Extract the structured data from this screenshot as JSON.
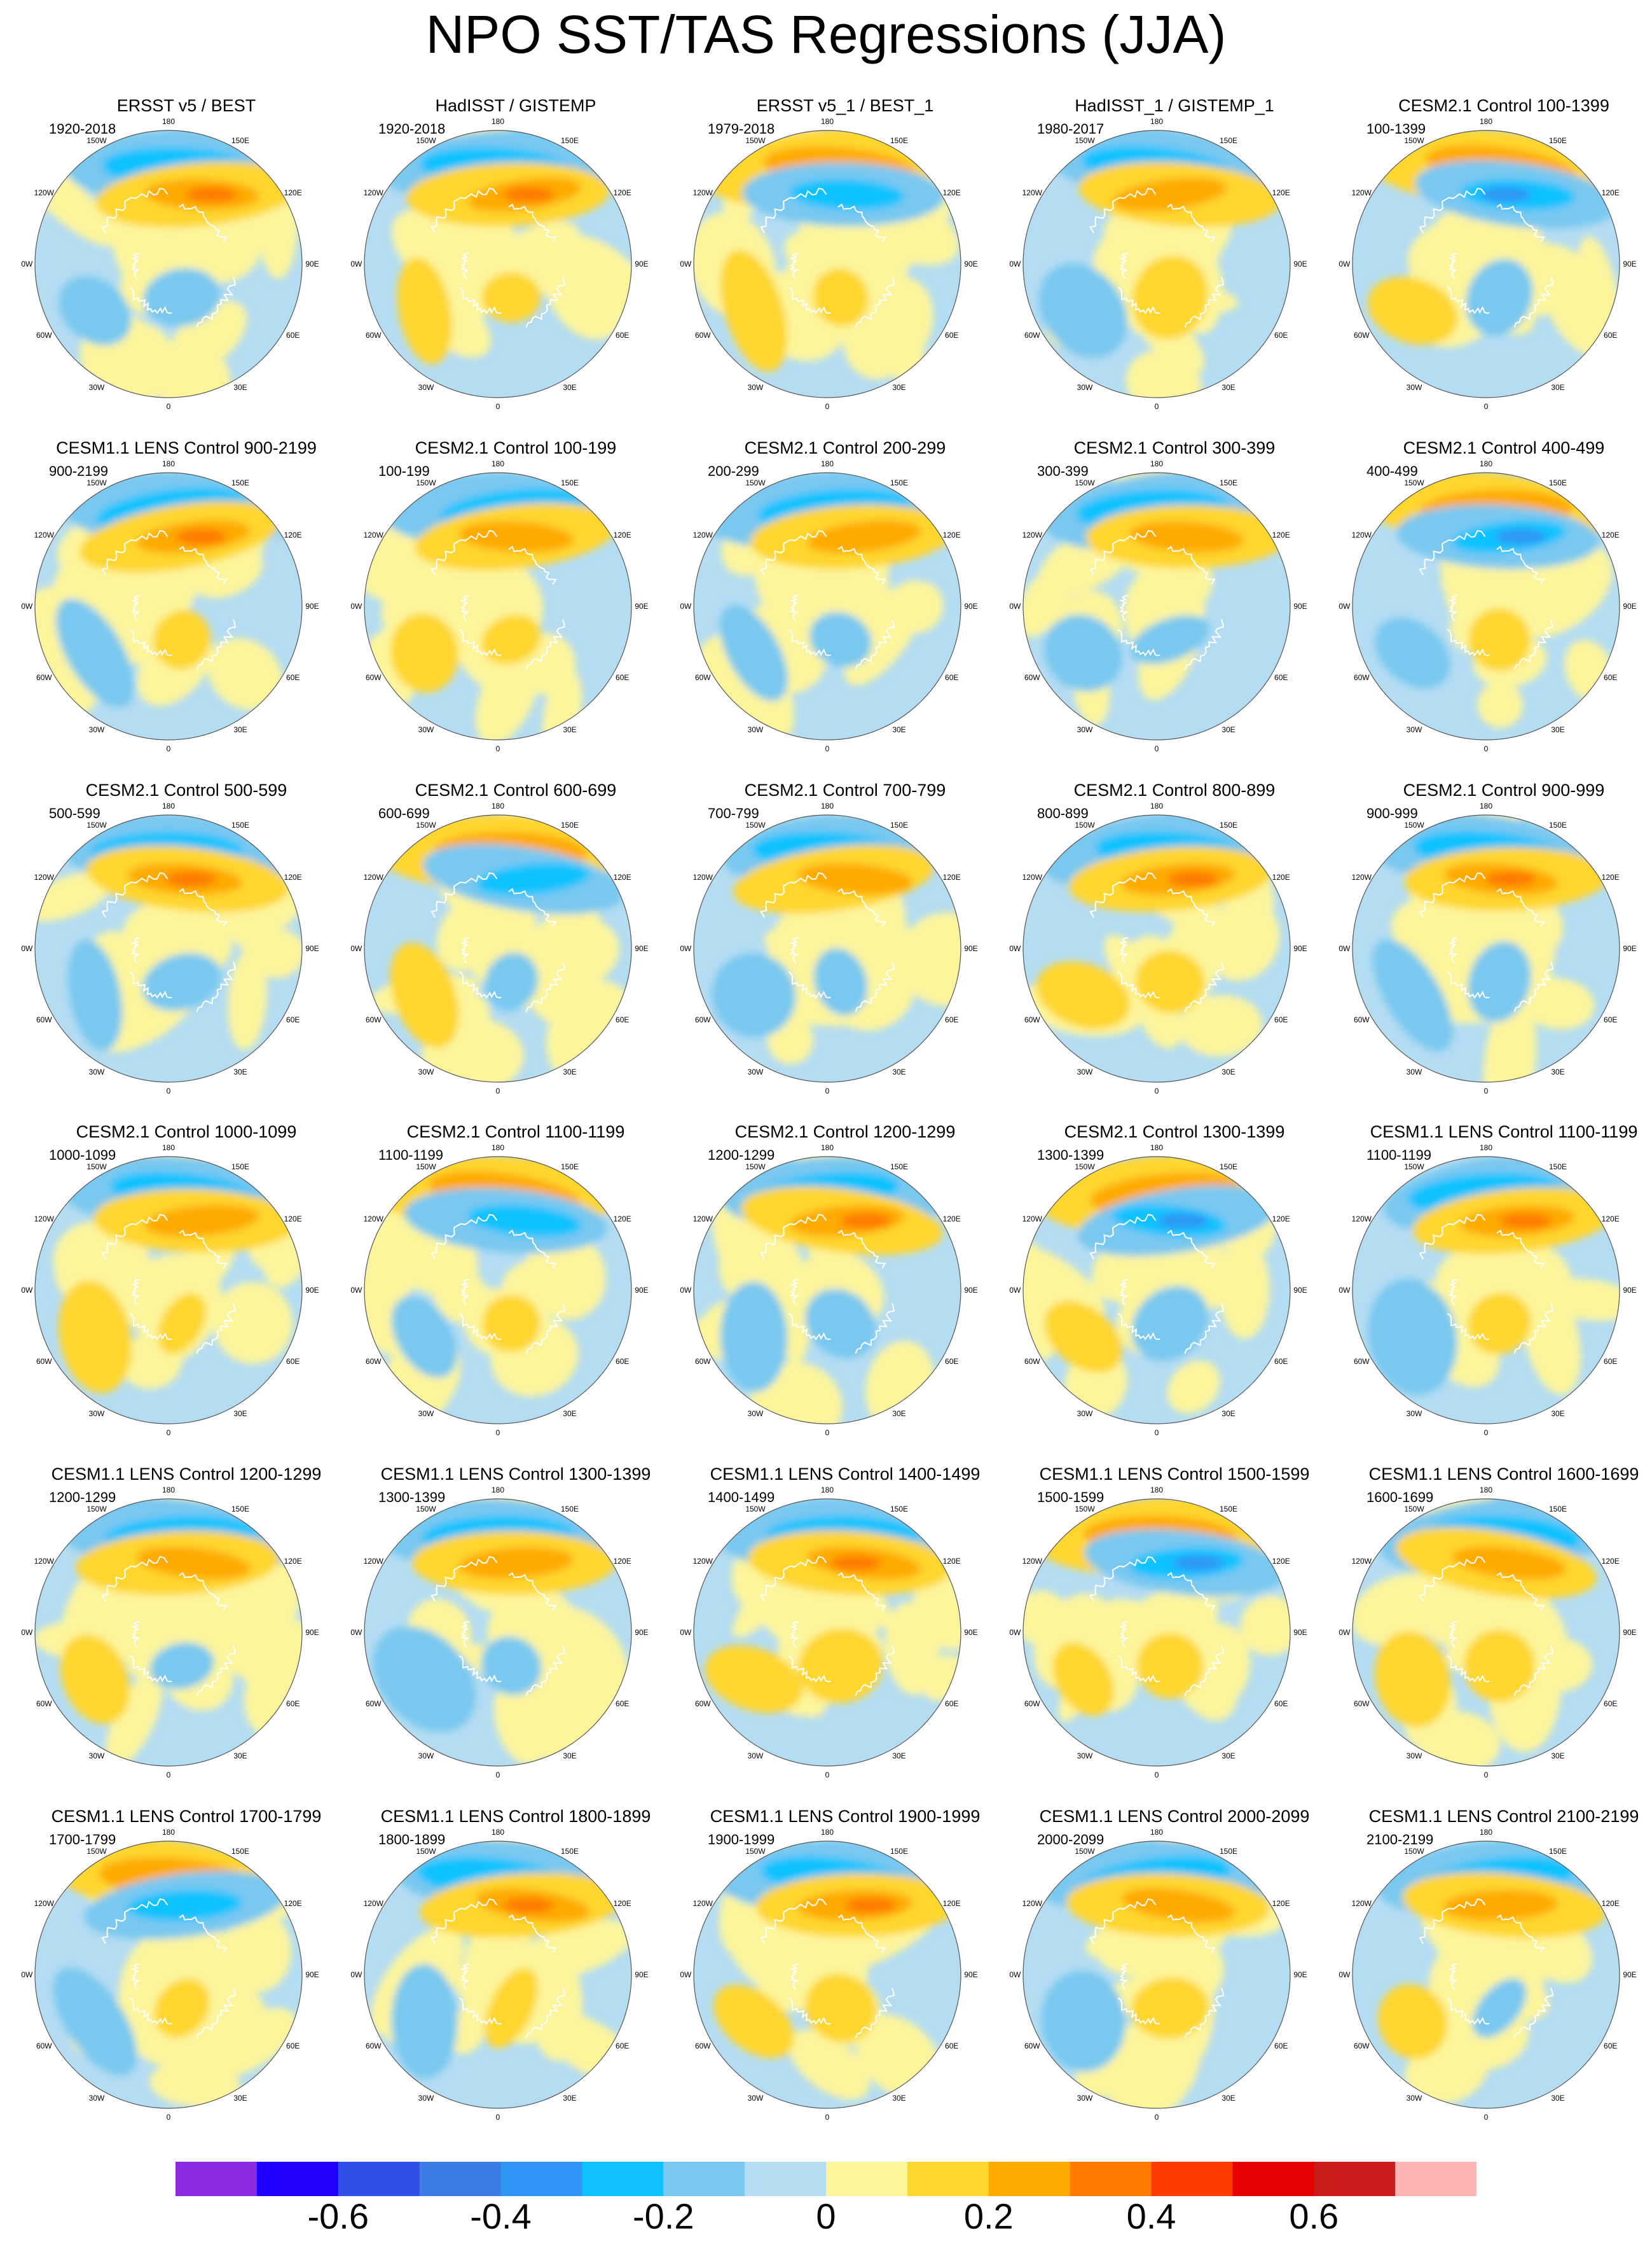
{
  "title": "NPO SST/TAS Regressions (JJA)",
  "longitude_labels": [
    "180",
    "150E",
    "120E",
    "90E",
    "60E",
    "30E",
    "0",
    "30W",
    "60W",
    "90W",
    "120W",
    "150W"
  ],
  "panels": [
    {
      "title": "ERSST v5 / BEST",
      "period": "1920-2018"
    },
    {
      "title": "HadISST / GISTEMP",
      "period": "1920-2018"
    },
    {
      "title": "ERSST v5_1 / BEST_1",
      "period": "1979-2018"
    },
    {
      "title": "HadISST_1 / GISTEMP_1",
      "period": "1980-2017"
    },
    {
      "title": "CESM2.1 Control 100-1399",
      "period": "100-1399"
    },
    {
      "title": "CESM1.1 LENS Control 900-2199",
      "period": "900-2199"
    },
    {
      "title": "CESM2.1 Control 100-199",
      "period": "100-199"
    },
    {
      "title": "CESM2.1 Control 200-299",
      "period": "200-299"
    },
    {
      "title": "CESM2.1 Control 300-399",
      "period": "300-399"
    },
    {
      "title": "CESM2.1 Control 400-499",
      "period": "400-499"
    },
    {
      "title": "CESM2.1 Control 500-599",
      "period": "500-599"
    },
    {
      "title": "CESM2.1 Control 600-699",
      "period": "600-699"
    },
    {
      "title": "CESM2.1 Control 700-799",
      "period": "700-799"
    },
    {
      "title": "CESM2.1 Control 800-899",
      "period": "800-899"
    },
    {
      "title": "CESM2.1 Control 900-999",
      "period": "900-999"
    },
    {
      "title": "CESM2.1 Control 1000-1099",
      "period": "1000-1099"
    },
    {
      "title": "CESM2.1 Control 1100-1199",
      "period": "1100-1199"
    },
    {
      "title": "CESM2.1 Control 1200-1299",
      "period": "1200-1299"
    },
    {
      "title": "CESM2.1 Control 1300-1399",
      "period": "1300-1399"
    },
    {
      "title": "CESM1.1 LENS Control 1100-1199",
      "period": "1100-1199"
    },
    {
      "title": "CESM1.1 LENS Control 1200-1299",
      "period": "1200-1299"
    },
    {
      "title": "CESM1.1 LENS Control 1300-1399",
      "period": "1300-1399"
    },
    {
      "title": "CESM1.1 LENS Control 1400-1499",
      "period": "1400-1499"
    },
    {
      "title": "CESM1.1 LENS Control 1500-1599",
      "period": "1500-1599"
    },
    {
      "title": "CESM1.1 LENS Control 1600-1699",
      "period": "1600-1699"
    },
    {
      "title": "CESM1.1 LENS Control 1700-1799",
      "period": "1700-1799"
    },
    {
      "title": "CESM1.1 LENS Control 1800-1899",
      "period": "1800-1899"
    },
    {
      "title": "CESM1.1 LENS Control 1900-1999",
      "period": "1900-1999"
    },
    {
      "title": "CESM1.1 LENS Control 2000-2099",
      "period": "2000-2099"
    },
    {
      "title": "CESM1.1 LENS Control 2100-2199",
      "period": "2100-2199"
    }
  ],
  "colorbar": {
    "colors": [
      "#8a2be2",
      "#1f00ff",
      "#2f4fe6",
      "#3d7ce6",
      "#2f96f5",
      "#0fc2ff",
      "#79c8f0",
      "#b4dcf2",
      "#fdf59c",
      "#ffd62e",
      "#ffaa00",
      "#ff7a00",
      "#ff3c00",
      "#e60000",
      "#cc1b1b",
      "#ffb3b3"
    ],
    "labels": [
      "-0.6",
      "-0.4",
      "-0.2",
      "0",
      "0.2",
      "0.4",
      "0.6"
    ],
    "label_values": [
      -0.6,
      -0.4,
      -0.2,
      0,
      0.2,
      0.4,
      0.6
    ],
    "range": [
      -0.8,
      0.8
    ]
  },
  "colors": {
    "land_fill": "#fdf59c",
    "ocean_fill": "#b4dcf2",
    "coastline": "#ffffff",
    "map_outline": "#555555"
  }
}
